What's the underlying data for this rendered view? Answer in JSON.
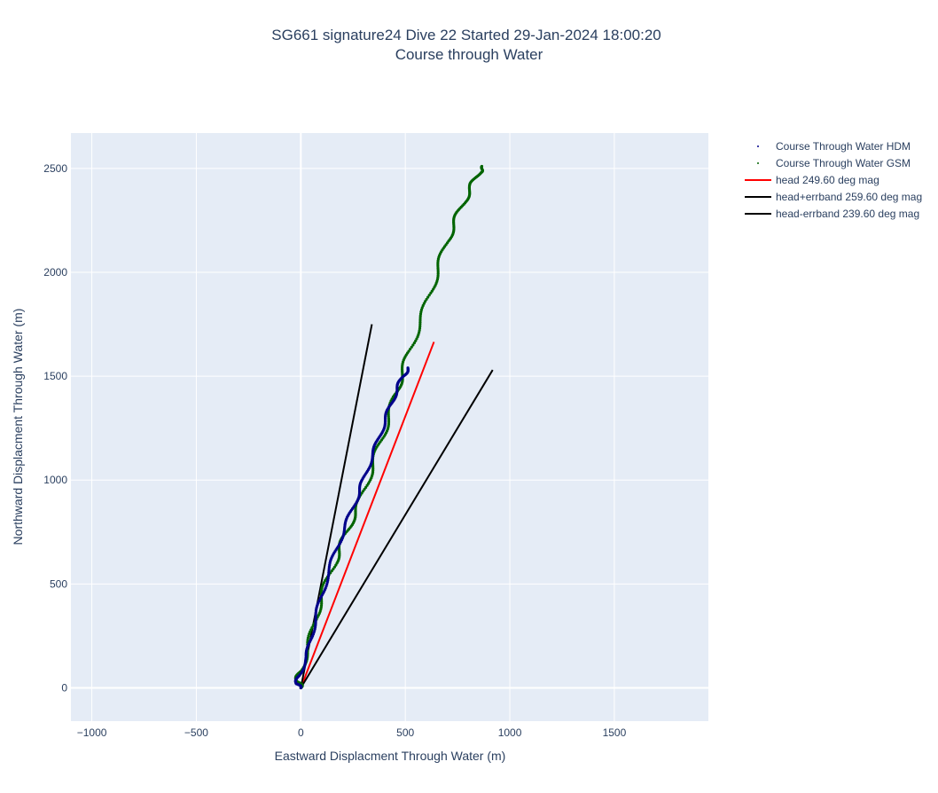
{
  "chart_data": {
    "type": "line",
    "title": "SG661 signature24 Dive 22 Started 29-Jan-2024 18:00:20",
    "subtitle": "Course through Water",
    "xlabel": "Eastward Displacment Through Water (m)",
    "ylabel": "Northward Displacment Through Water (m)",
    "xlim": [
      -1100,
      1950
    ],
    "ylim": [
      -160,
      2670
    ],
    "xticks": [
      -1000,
      -500,
      0,
      500,
      1000,
      1500
    ],
    "yticks": [
      0,
      500,
      1000,
      1500,
      2000,
      2500
    ],
    "xtick_labels": [
      "−1000",
      "−500",
      "0",
      "500",
      "1000",
      "1500"
    ],
    "ytick_labels": [
      "0",
      "500",
      "1000",
      "1500",
      "2000",
      "2500"
    ],
    "grid": true,
    "legend_position": "top-right",
    "series": [
      {
        "name": "Course Through Water HDM",
        "mode": "markers",
        "color": "#00008b",
        "x": [
          0,
          -20,
          -10,
          30,
          50,
          80,
          110,
          150,
          190,
          230,
          270,
          300,
          335,
          370,
          400,
          430,
          460,
          490,
          515
        ],
        "y": [
          0,
          20,
          60,
          150,
          250,
          370,
          480,
          610,
          720,
          820,
          920,
          1000,
          1100,
          1190,
          1280,
          1360,
          1440,
          1500,
          1540
        ]
      },
      {
        "name": "Course Through Water GSM",
        "mode": "markers",
        "color": "#006400",
        "x": [
          0,
          -15,
          -5,
          40,
          70,
          110,
          160,
          200,
          240,
          285,
          330,
          370,
          410,
          450,
          480,
          520,
          570,
          620,
          660,
          700,
          740,
          780,
          820,
          850,
          880
        ],
        "y": [
          0,
          30,
          80,
          200,
          340,
          470,
          600,
          700,
          800,
          900,
          1030,
          1150,
          1270,
          1400,
          1500,
          1620,
          1760,
          1900,
          2030,
          2150,
          2250,
          2340,
          2420,
          2480,
          2510
        ]
      },
      {
        "name": "head 249.60 deg mag",
        "mode": "lines",
        "color": "#ff0000",
        "x": [
          0,
          637
        ],
        "y": [
          0,
          1665
        ]
      },
      {
        "name": "head+errband 259.60 deg mag",
        "mode": "lines",
        "color": "#000000",
        "x": [
          0,
          340
        ],
        "y": [
          0,
          1750
        ]
      },
      {
        "name": "head-errband 239.60 deg mag",
        "mode": "lines",
        "color": "#000000",
        "x": [
          0,
          918
        ],
        "y": [
          0,
          1530
        ]
      }
    ]
  },
  "colors": {
    "plot_background": "#e5ecf6",
    "grid": "#ffffff",
    "text": "#2a3f5f"
  }
}
